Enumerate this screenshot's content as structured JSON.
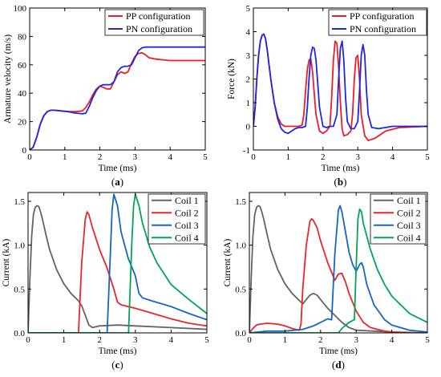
{
  "chart_data": [
    {
      "panel_label": "(a)",
      "type": "line",
      "xlabel": "Time (ms)",
      "ylabel": "Armature velocity (m/s)",
      "xlim": [
        0,
        5
      ],
      "ylim": [
        0,
        100
      ],
      "xticks": [
        "0",
        "1",
        "2",
        "3",
        "4",
        "5"
      ],
      "yticks": [
        "0",
        "20",
        "40",
        "60",
        "80",
        "100"
      ],
      "legend_position": "top-right",
      "grid": false,
      "series": [
        {
          "name": "PP configuration",
          "color": "#ee1c25",
          "x": [
            0,
            0.1,
            0.2,
            0.3,
            0.4,
            0.5,
            0.6,
            0.7,
            0.9,
            1.1,
            1.3,
            1.5,
            1.6,
            1.7,
            1.8,
            1.9,
            2.0,
            2.1,
            2.2,
            2.3,
            2.4,
            2.5,
            2.6,
            2.7,
            2.8,
            2.9,
            3.0,
            3.1,
            3.2,
            3.3,
            3.4,
            3.6,
            3.8,
            4.0,
            4.5,
            5.0
          ],
          "y": [
            0,
            2,
            9,
            18,
            24,
            27,
            28,
            28,
            27.5,
            27,
            27,
            27.5,
            30,
            34,
            39,
            43,
            45,
            44,
            43,
            43,
            48,
            53,
            55,
            54,
            55,
            61,
            66,
            68,
            68.5,
            67,
            65,
            64,
            63.5,
            63,
            63,
            63
          ]
        },
        {
          "name": "PN configuration",
          "color": "#1f28e0",
          "x": [
            0,
            0.1,
            0.2,
            0.3,
            0.4,
            0.5,
            0.6,
            0.7,
            0.9,
            1.1,
            1.3,
            1.5,
            1.6,
            1.7,
            1.8,
            1.9,
            2.0,
            2.1,
            2.2,
            2.3,
            2.4,
            2.5,
            2.6,
            2.7,
            2.8,
            2.9,
            3.0,
            3.1,
            3.2,
            3.3,
            3.4,
            3.6,
            4.0,
            4.5,
            5.0
          ],
          "y": [
            0,
            2,
            9,
            18,
            24,
            27,
            28,
            28,
            27.5,
            27,
            26,
            25.5,
            26,
            31,
            37,
            42,
            45,
            46,
            46,
            46,
            48,
            55,
            58,
            59,
            59,
            60,
            65,
            70,
            72,
            72.5,
            72.5,
            72.5,
            72.5,
            72.5,
            72.5
          ]
        }
      ]
    },
    {
      "panel_label": "(b)",
      "type": "line",
      "xlabel": "Time (ms)",
      "ylabel": "Force (kN)",
      "xlim": [
        0,
        5
      ],
      "ylim": [
        -1,
        5
      ],
      "xticks": [
        "0",
        "1",
        "2",
        "3",
        "4",
        "5"
      ],
      "yticks": [
        "-1",
        "0",
        "1",
        "2",
        "3",
        "4",
        "5"
      ],
      "legend_position": "top-right",
      "grid": false,
      "series": [
        {
          "name": "PP configuration",
          "color": "#ee1c25",
          "x": [
            0,
            0.05,
            0.1,
            0.15,
            0.2,
            0.25,
            0.3,
            0.35,
            0.4,
            0.5,
            0.6,
            0.7,
            0.8,
            0.9,
            1.0,
            1.1,
            1.2,
            1.3,
            1.4,
            1.45,
            1.5,
            1.55,
            1.6,
            1.65,
            1.7,
            1.75,
            1.8,
            1.9,
            2.0,
            2.1,
            2.2,
            2.25,
            2.3,
            2.35,
            2.4,
            2.45,
            2.5,
            2.55,
            2.6,
            2.7,
            2.8,
            2.85,
            2.9,
            2.95,
            3.0,
            3.05,
            3.1,
            3.2,
            3.3,
            3.5,
            3.8,
            4.2,
            5.0
          ],
          "y": [
            0,
            0.8,
            2.0,
            3.0,
            3.6,
            3.85,
            3.9,
            3.7,
            3.2,
            2.0,
            1.0,
            0.4,
            0.1,
            0,
            0,
            0,
            0,
            0,
            0.05,
            0.5,
            1.5,
            2.4,
            2.8,
            2.85,
            2.3,
            1.4,
            0.5,
            -0.2,
            -0.3,
            -0.2,
            0,
            1.2,
            2.8,
            3.6,
            3.5,
            2.5,
            1.0,
            -0.1,
            -0.4,
            -0.35,
            -0.2,
            0.5,
            2.0,
            2.9,
            3.0,
            2.0,
            0.5,
            -0.4,
            -0.6,
            -0.5,
            -0.2,
            -0.05,
            0
          ]
        },
        {
          "name": "PN configuration",
          "color": "#1f28e0",
          "x": [
            0,
            0.05,
            0.1,
            0.15,
            0.2,
            0.25,
            0.3,
            0.35,
            0.4,
            0.5,
            0.6,
            0.7,
            0.8,
            0.9,
            1.0,
            1.1,
            1.2,
            1.3,
            1.4,
            1.5,
            1.55,
            1.6,
            1.65,
            1.7,
            1.75,
            1.8,
            1.85,
            1.9,
            2.0,
            2.1,
            2.2,
            2.3,
            2.4,
            2.45,
            2.5,
            2.55,
            2.6,
            2.65,
            2.7,
            2.8,
            2.9,
            3.0,
            3.05,
            3.1,
            3.15,
            3.2,
            3.25,
            3.3,
            3.4,
            3.6,
            4.0,
            4.5,
            5.0
          ],
          "y": [
            0,
            0.8,
            2.0,
            3.0,
            3.6,
            3.85,
            3.9,
            3.7,
            3.2,
            2.0,
            1.0,
            0.3,
            -0.1,
            -0.25,
            -0.3,
            -0.2,
            -0.1,
            -0.05,
            -0.05,
            0.0,
            0.8,
            2.0,
            3.0,
            3.35,
            3.3,
            2.8,
            1.8,
            0.8,
            0.0,
            -0.05,
            0,
            0,
            0.5,
            2.0,
            3.3,
            3.6,
            2.8,
            1.2,
            0.2,
            -0.1,
            -0.1,
            0.2,
            1.5,
            3.0,
            3.45,
            3.0,
            1.5,
            0.5,
            -0.05,
            -0.1,
            0,
            0,
            0
          ]
        }
      ]
    },
    {
      "panel_label": "(c)",
      "type": "line",
      "xlabel": "Time (ms)",
      "ylabel": "Current (kA)",
      "xlim": [
        0,
        5
      ],
      "ylim": [
        0,
        1.6
      ],
      "xticks": [
        "0",
        "1",
        "2",
        "3",
        "4",
        "5"
      ],
      "yticks": [
        "0.0",
        "0.5",
        "1.0",
        "1.5"
      ],
      "legend_position": "top-right",
      "grid": false,
      "series": [
        {
          "name": "Coil 1",
          "color": "#636363",
          "x": [
            0,
            0.05,
            0.1,
            0.15,
            0.2,
            0.25,
            0.3,
            0.35,
            0.4,
            0.5,
            0.6,
            0.8,
            1.0,
            1.2,
            1.4,
            1.5,
            1.6,
            1.7,
            1.8,
            2.0,
            2.5,
            3.0,
            4.0,
            5.0
          ],
          "y": [
            0,
            0.6,
            1.1,
            1.35,
            1.43,
            1.45,
            1.44,
            1.38,
            1.3,
            1.12,
            0.95,
            0.72,
            0.56,
            0.45,
            0.37,
            0.31,
            0.2,
            0.09,
            0.06,
            0.08,
            0.09,
            0.08,
            0.06,
            0.04
          ]
        },
        {
          "name": "Coil 2",
          "color": "#e8262b",
          "x": [
            0,
            1.4,
            1.41,
            1.5,
            1.6,
            1.65,
            1.7,
            1.8,
            2.0,
            2.2,
            2.4,
            2.5,
            2.6,
            3.0,
            3.5,
            4.0,
            4.5,
            5.0
          ],
          "y": [
            0,
            0,
            0,
            0.8,
            1.3,
            1.38,
            1.35,
            1.2,
            0.95,
            0.75,
            0.5,
            0.35,
            0.32,
            0.28,
            0.22,
            0.16,
            0.11,
            0.08
          ]
        },
        {
          "name": "Coil 3",
          "color": "#1565c0",
          "x": [
            0,
            2.2,
            2.21,
            2.3,
            2.35,
            2.4,
            2.5,
            2.6,
            2.8,
            3.0,
            3.1,
            3.2,
            3.5,
            4.0,
            4.5,
            5.0
          ],
          "y": [
            0,
            0,
            0,
            0.9,
            1.4,
            1.58,
            1.45,
            1.15,
            0.85,
            0.65,
            0.45,
            0.4,
            0.36,
            0.3,
            0.22,
            0.15
          ]
        },
        {
          "name": "Coil 4",
          "color": "#00a651",
          "x": [
            0,
            2.8,
            2.81,
            2.9,
            2.95,
            3.0,
            3.1,
            3.2,
            3.4,
            3.6,
            4.0,
            4.5,
            5.0
          ],
          "y": [
            0,
            0,
            0,
            1.0,
            1.45,
            1.58,
            1.45,
            1.25,
            0.98,
            0.8,
            0.55,
            0.38,
            0.22
          ]
        }
      ]
    },
    {
      "panel_label": "(d)",
      "type": "line",
      "xlabel": "Time (ms)",
      "ylabel": "Current (kA)",
      "xlim": [
        0,
        5
      ],
      "ylim": [
        0,
        1.6
      ],
      "xticks": [
        "0",
        "1",
        "2",
        "3",
        "4",
        "5"
      ],
      "yticks": [
        "0.0",
        "0.5",
        "1.0",
        "1.5"
      ],
      "legend_position": "top-right",
      "grid": false,
      "series": [
        {
          "name": "Coil 1",
          "color": "#636363",
          "x": [
            0,
            0.05,
            0.1,
            0.15,
            0.2,
            0.25,
            0.3,
            0.35,
            0.4,
            0.5,
            0.6,
            0.8,
            1.0,
            1.2,
            1.4,
            1.5,
            1.6,
            1.7,
            1.8,
            1.9,
            2.0,
            2.2,
            2.4,
            2.6,
            2.8,
            3.0,
            4.0,
            5.0
          ],
          "y": [
            0,
            0.6,
            1.1,
            1.35,
            1.43,
            1.45,
            1.44,
            1.38,
            1.3,
            1.12,
            0.95,
            0.72,
            0.56,
            0.45,
            0.37,
            0.33,
            0.38,
            0.43,
            0.45,
            0.43,
            0.38,
            0.28,
            0.2,
            0.12,
            0.06,
            0.03,
            0.01,
            0
          ]
        },
        {
          "name": "Coil 2",
          "color": "#e8262b",
          "x": [
            0,
            0.1,
            0.2,
            0.3,
            0.5,
            0.8,
            1.0,
            1.2,
            1.4,
            1.45,
            1.5,
            1.6,
            1.7,
            1.75,
            1.8,
            1.9,
            2.0,
            2.2,
            2.4,
            2.5,
            2.6,
            2.7,
            2.8,
            3.0,
            3.2,
            3.4,
            3.6,
            3.8,
            4.0,
            4.5,
            5.0
          ],
          "y": [
            0,
            0.05,
            0.09,
            0.1,
            0.11,
            0.1,
            0.08,
            0.05,
            0.03,
            0.1,
            0.5,
            1.0,
            1.27,
            1.3,
            1.28,
            1.2,
            1.05,
            0.8,
            0.6,
            0.67,
            0.68,
            0.58,
            0.45,
            0.25,
            0.12,
            0.06,
            0.04,
            0.02,
            0.01,
            0,
            0
          ]
        },
        {
          "name": "Coil 3",
          "color": "#1565c0",
          "x": [
            0,
            0.5,
            1.0,
            1.5,
            1.8,
            2.0,
            2.2,
            2.3,
            2.31,
            2.4,
            2.5,
            2.55,
            2.6,
            2.7,
            2.8,
            2.9,
            3.0,
            3.1,
            3.15,
            3.2,
            3.3,
            3.5,
            3.8,
            4.0,
            4.5,
            5.0
          ],
          "y": [
            0,
            0.02,
            0.02,
            0.04,
            0.08,
            0.12,
            0.16,
            0.15,
            0.15,
            0.9,
            1.4,
            1.45,
            1.38,
            1.15,
            0.92,
            0.78,
            0.7,
            0.78,
            0.8,
            0.75,
            0.55,
            0.32,
            0.15,
            0.09,
            0.03,
            0.01
          ]
        },
        {
          "name": "Coil 4",
          "color": "#00a651",
          "x": [
            0,
            2.5,
            2.6,
            2.8,
            2.95,
            3.0,
            3.05,
            3.1,
            3.15,
            3.2,
            3.4,
            3.6,
            3.8,
            4.0,
            4.5,
            5.0
          ],
          "y": [
            0,
            0,
            0.05,
            0.12,
            0.15,
            0.75,
            1.3,
            1.41,
            1.38,
            1.25,
            0.95,
            0.72,
            0.55,
            0.42,
            0.22,
            0.12
          ]
        }
      ]
    }
  ]
}
